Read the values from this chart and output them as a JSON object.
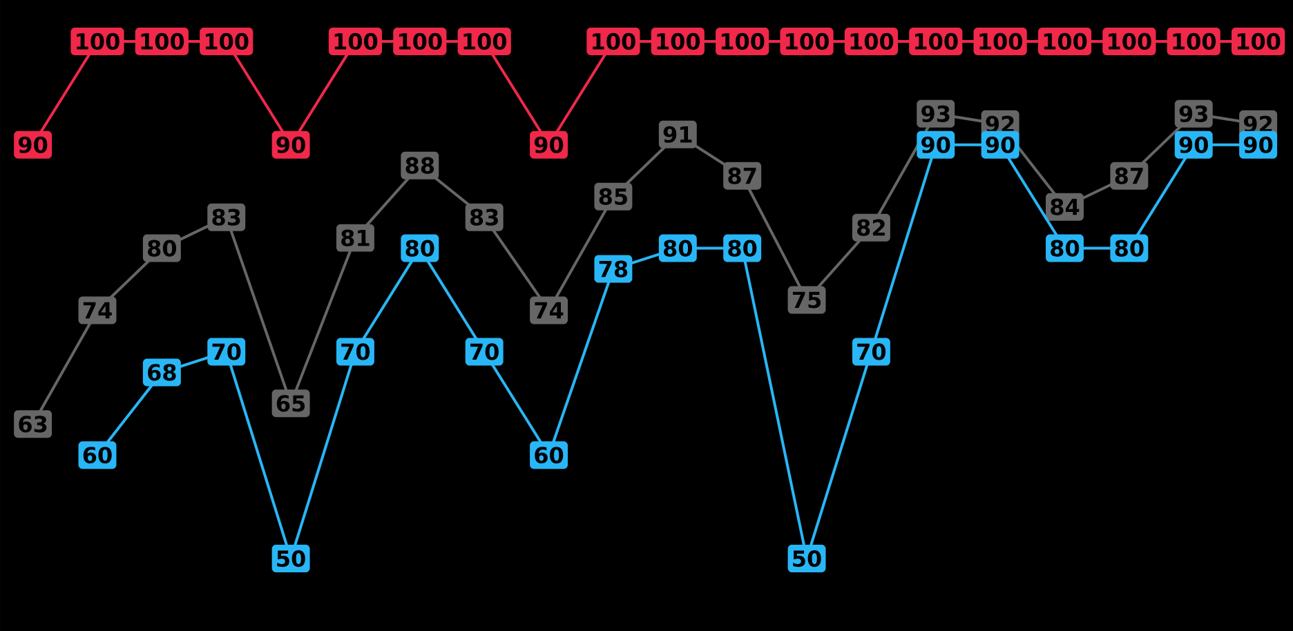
{
  "chart_data": {
    "type": "line",
    "categories": [
      null,
      null,
      null,
      null,
      null,
      null,
      null,
      null,
      null,
      null,
      null,
      null,
      null,
      null,
      null,
      null,
      null,
      null,
      null,
      null
    ],
    "ylim": [
      43,
      104
    ],
    "marker": "square",
    "series": [
      {
        "color": "#f0284a",
        "values": [
          90,
          100,
          100,
          100,
          90,
          100,
          100,
          100,
          90,
          100,
          100,
          100,
          100,
          100,
          100,
          100,
          100,
          100,
          100,
          100
        ],
        "value_labels": [
          "90",
          "100",
          "100",
          "100",
          "90",
          "100",
          "100",
          "100",
          "90",
          "100",
          "100",
          "100",
          "100",
          "100",
          "100",
          "100",
          "100",
          "100",
          "100",
          "100"
        ]
      },
      {
        "color": "#666666",
        "values": [
          63,
          74,
          80,
          83,
          65,
          81,
          88,
          83,
          74,
          85,
          91,
          87,
          75,
          82,
          93,
          92,
          84,
          87,
          93,
          92
        ],
        "value_labels": [
          "63",
          "74",
          "80",
          "83",
          "65",
          "81",
          "88",
          "83",
          "74",
          "85",
          "91",
          "87",
          "75",
          "82",
          "93",
          "92",
          "84",
          "87",
          "93",
          "92"
        ]
      },
      {
        "color": "#29b6f6",
        "values": [
          null,
          60,
          68,
          70,
          50,
          70,
          80,
          70,
          60,
          78,
          80,
          80,
          50,
          70,
          90,
          90,
          80,
          80,
          90,
          90
        ],
        "value_labels": [
          null,
          "60",
          "68",
          "70",
          "50",
          "70",
          "80",
          "70",
          "60",
          "78",
          "80",
          "80",
          "50",
          "70",
          "90",
          "90",
          "80",
          "80",
          "90",
          "90"
        ]
      }
    ]
  }
}
